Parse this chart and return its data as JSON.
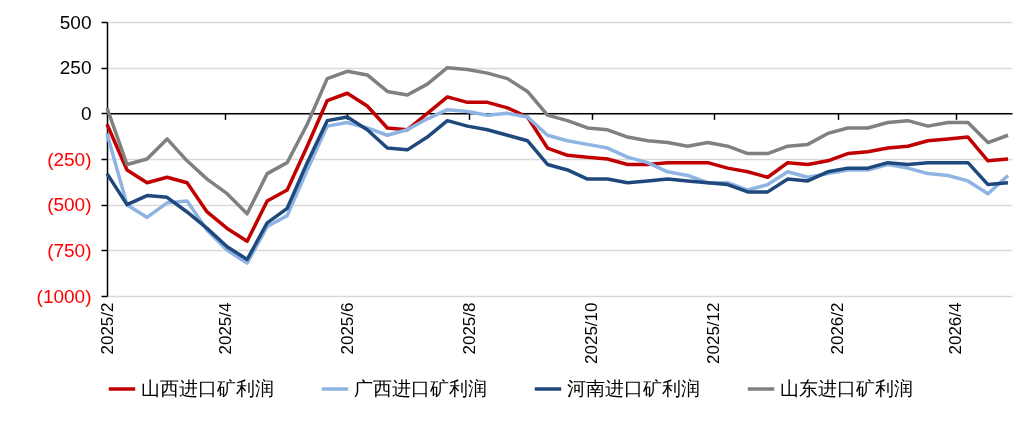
{
  "chart_data": {
    "type": "line",
    "x": [
      "2025-02-01",
      "2025-02-11",
      "2025-02-21",
      "2025-03-03",
      "2025-03-13",
      "2025-03-23",
      "2025-04-02",
      "2025-04-12",
      "2025-04-22",
      "2025-05-02",
      "2025-05-12",
      "2025-05-22",
      "2025-06-01",
      "2025-06-11",
      "2025-06-21",
      "2025-07-01",
      "2025-07-11",
      "2025-07-21",
      "2025-07-31",
      "2025-08-10",
      "2025-08-20",
      "2025-08-30",
      "2025-09-09",
      "2025-09-19",
      "2025-09-29",
      "2025-10-09",
      "2025-10-19",
      "2025-10-29",
      "2025-11-08",
      "2025-11-18",
      "2025-11-28",
      "2025-12-08",
      "2025-12-18",
      "2025-12-28",
      "2026-01-07",
      "2026-01-17",
      "2026-01-27",
      "2026-02-06",
      "2026-02-16",
      "2026-02-26",
      "2026-03-08",
      "2026-03-18",
      "2026-03-28",
      "2026-04-07",
      "2026-04-17",
      "2026-04-27"
    ],
    "series": [
      {
        "name": "山西进口矿利润",
        "color": "#c00000",
        "values": [
          -60,
          -310,
          -380,
          -350,
          -380,
          -540,
          -630,
          -700,
          -480,
          -420,
          -180,
          70,
          110,
          40,
          -80,
          -90,
          0,
          90,
          60,
          60,
          30,
          -20,
          -190,
          -230,
          -240,
          -250,
          -280,
          -280,
          -270,
          -270,
          -270,
          -300,
          -320,
          -350,
          -270,
          -280,
          -260,
          -220,
          -210,
          -190,
          -180,
          -150,
          -140,
          -130,
          -260,
          -250
        ]
      },
      {
        "name": "广西进口矿利润",
        "color": "#8eb4e3",
        "values": [
          -110,
          -500,
          -570,
          -490,
          -480,
          -640,
          -750,
          -820,
          -620,
          -560,
          -310,
          -70,
          -50,
          -80,
          -120,
          -90,
          -30,
          20,
          10,
          -10,
          0,
          -20,
          -120,
          -150,
          -170,
          -190,
          -240,
          -270,
          -320,
          -340,
          -380,
          -380,
          -420,
          -390,
          -320,
          -350,
          -330,
          -310,
          -310,
          -280,
          -300,
          -330,
          -340,
          -370,
          -440,
          -340
        ]
      },
      {
        "name": "河南进口矿利润",
        "color": "#1f497d",
        "values": [
          -330,
          -500,
          -450,
          -460,
          -540,
          -630,
          -730,
          -800,
          -600,
          -520,
          -270,
          -40,
          -20,
          -90,
          -190,
          -200,
          -130,
          -40,
          -70,
          -90,
          -120,
          -150,
          -280,
          -310,
          -360,
          -360,
          -380,
          -370,
          -360,
          -370,
          -380,
          -390,
          -430,
          -430,
          -360,
          -370,
          -320,
          -300,
          -300,
          -270,
          -280,
          -270,
          -270,
          -270,
          -390,
          -380
        ]
      },
      {
        "name": "山东进口矿利润",
        "color": "#808080",
        "values": [
          30,
          -280,
          -250,
          -140,
          -260,
          -360,
          -440,
          -550,
          -330,
          -270,
          -60,
          190,
          230,
          210,
          120,
          100,
          160,
          250,
          240,
          220,
          190,
          120,
          -10,
          -40,
          -80,
          -90,
          -130,
          -150,
          -160,
          -180,
          -160,
          -180,
          -220,
          -220,
          -180,
          -170,
          -110,
          -80,
          -80,
          -50,
          -40,
          -70,
          -50,
          -50,
          -160,
          -120
        ]
      }
    ],
    "xlim": [
      "2025-02-01",
      "2026-04-29"
    ],
    "xticks": [
      {
        "value": "2025-02-01",
        "label": "2025/2"
      },
      {
        "value": "2025-04-01",
        "label": "2025/4"
      },
      {
        "value": "2025-06-01",
        "label": "2025/6"
      },
      {
        "value": "2025-08-01",
        "label": "2025/8"
      },
      {
        "value": "2025-10-01",
        "label": "2025/10"
      },
      {
        "value": "2025-12-01",
        "label": "2025/12"
      },
      {
        "value": "2026-02-01",
        "label": "2026/2"
      },
      {
        "value": "2026-04-01",
        "label": "2026/4"
      }
    ],
    "ylim": [
      -1000,
      500
    ],
    "yticks": [
      {
        "value": -1000,
        "label": "(1000)"
      },
      {
        "value": -750,
        "label": "(750)"
      },
      {
        "value": -500,
        "label": "(500)"
      },
      {
        "value": -250,
        "label": "(250)"
      },
      {
        "value": 0,
        "label": "0"
      },
      {
        "value": 250,
        "label": "250"
      },
      {
        "value": 500,
        "label": "500"
      }
    ],
    "grid": "y",
    "legend": "bottom",
    "line_style": "solid",
    "marker": "none"
  }
}
